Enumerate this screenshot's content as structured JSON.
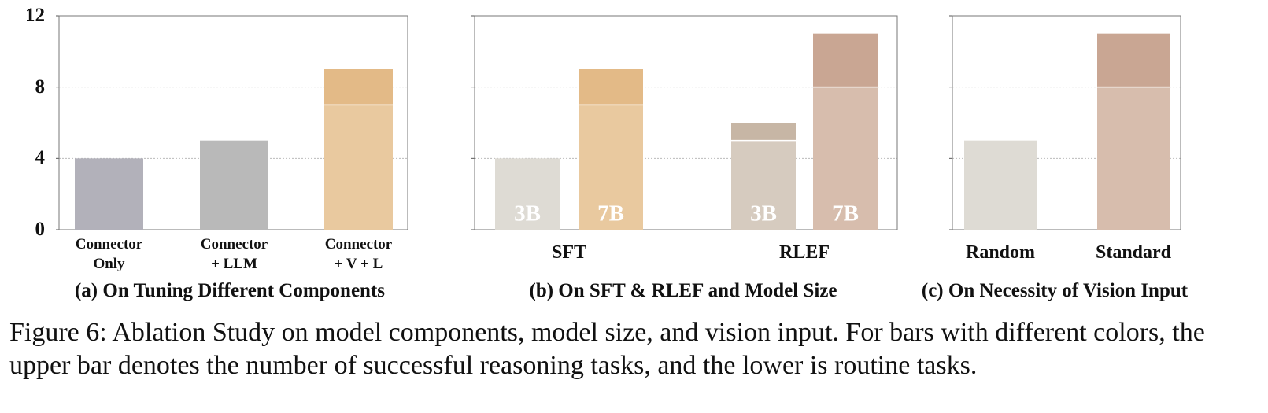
{
  "chart_data": [
    {
      "type": "bar",
      "title": "(a) On Tuning Different Components",
      "categories": [
        "Connector Only",
        "Connector + LLM",
        "Connector + V + L"
      ],
      "series": [
        {
          "segments": [
            {
              "values": [
                4,
                5,
                7
              ],
              "colors": [
                "#b2b1ba",
                "#b9b9b9",
                "#e9c99f"
              ]
            },
            {
              "values": [
                null,
                null,
                2
              ],
              "colors": [
                null,
                null,
                "#e3ba87"
              ]
            }
          ]
        }
      ],
      "ylim": [
        0,
        12
      ],
      "yticks": [
        0,
        4,
        8,
        12
      ],
      "show_tick_labels": true,
      "grid": true
    },
    {
      "type": "bar",
      "title": "(b) On SFT & RLEF and Model Size",
      "categories": [
        "SFT",
        "RLEF"
      ],
      "series": [
        {
          "name": "3B",
          "segments": [
            {
              "values": [
                4,
                5
              ],
              "colors": [
                "#dedbd4",
                "#d6cbbf"
              ]
            },
            {
              "values": [
                null,
                1
              ],
              "colors": [
                null,
                "#c7b6a5"
              ]
            }
          ]
        },
        {
          "name": "7B",
          "segments": [
            {
              "values": [
                7,
                8
              ],
              "colors": [
                "#e9c99f",
                "#d7bdad"
              ]
            },
            {
              "values": [
                2,
                3
              ],
              "colors": [
                "#e3ba87",
                "#c9a693"
              ]
            }
          ]
        }
      ],
      "ylim": [
        0,
        12
      ],
      "yticks": [
        0,
        4,
        8,
        12
      ],
      "show_tick_labels": false,
      "grid": true
    },
    {
      "type": "bar",
      "title": "(c) On Necessity of Vision Input",
      "categories": [
        "Random",
        "Standard"
      ],
      "series": [
        {
          "segments": [
            {
              "values": [
                5,
                8
              ],
              "colors": [
                "#dedbd4",
                "#d7bdad"
              ]
            },
            {
              "values": [
                null,
                3
              ],
              "colors": [
                null,
                "#c9a693"
              ]
            }
          ]
        }
      ],
      "ylim": [
        0,
        12
      ],
      "yticks": [
        0,
        4,
        8,
        12
      ],
      "show_tick_labels": false,
      "grid": true
    }
  ],
  "caption": "Figure 6: Ablation Study on model components, model size, and vision input. For bars with different colors, the upper bar denotes the number of successful reasoning tasks, and the lower is routine tasks."
}
